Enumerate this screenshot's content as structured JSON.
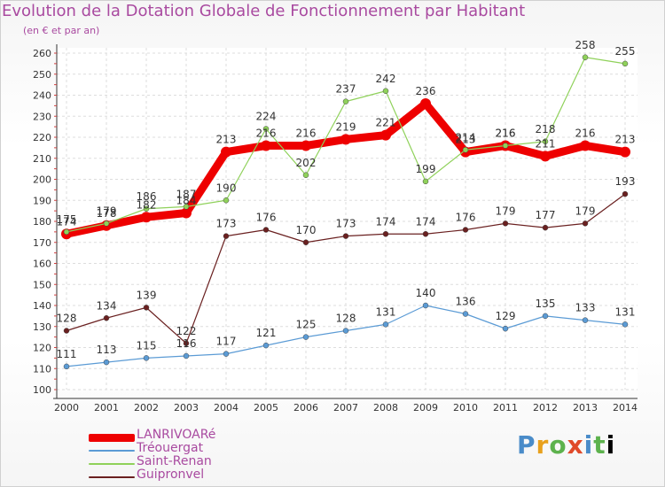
{
  "chart_data": {
    "type": "line",
    "title": "Evolution de la Dotation Globale de Fonctionnement par Habitant",
    "subtitle": "(en € et par an)",
    "categories": [
      "2000",
      "2001",
      "2002",
      "2003",
      "2004",
      "2005",
      "2006",
      "2007",
      "2008",
      "2009",
      "2010",
      "2011",
      "2012",
      "2013",
      "2014"
    ],
    "ylim": [
      100,
      260
    ],
    "yticks": [
      100,
      110,
      120,
      130,
      140,
      150,
      160,
      170,
      180,
      190,
      200,
      210,
      220,
      230,
      240,
      250,
      260
    ],
    "grid": true,
    "series": [
      {
        "name": "LANRIVOARé",
        "color": "#ee0000",
        "values": [
          174,
          178,
          182,
          184,
          213,
          216,
          216,
          219,
          221,
          236,
          213,
          216,
          211,
          216,
          213
        ]
      },
      {
        "name": "Tréouergat",
        "color": "#5b9bd5",
        "values": [
          111,
          113,
          115,
          116,
          117,
          121,
          125,
          128,
          131,
          140,
          136,
          129,
          135,
          133,
          131
        ]
      },
      {
        "name": "Saint-Renan",
        "color": "#8fd15a",
        "values": [
          175,
          179,
          186,
          187,
          190,
          224,
          202,
          237,
          242,
          199,
          214,
          216,
          218,
          258,
          255
        ]
      },
      {
        "name": "Guipronvel",
        "color": "#6a2020",
        "values": [
          128,
          134,
          139,
          122,
          173,
          176,
          170,
          173,
          174,
          174,
          176,
          179,
          177,
          179,
          193
        ]
      }
    ]
  },
  "logo": {
    "letters": [
      "P",
      "r",
      "o",
      "x",
      "i",
      "t",
      "i"
    ]
  }
}
